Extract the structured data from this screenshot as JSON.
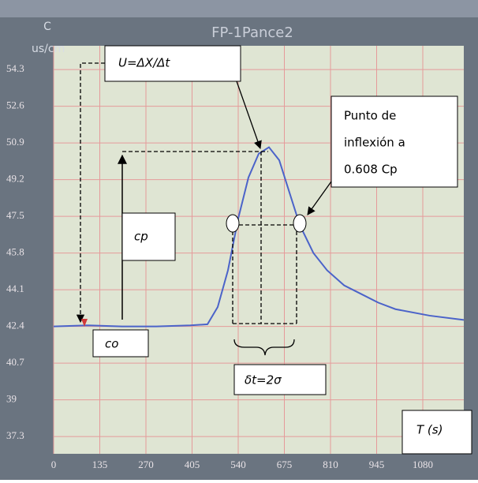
{
  "chart_data": {
    "type": "line",
    "title": "FP-1Pance2",
    "y_label": [
      "C",
      "us/cm"
    ],
    "x": [
      0,
      100,
      200,
      300,
      400,
      450,
      480,
      510,
      540,
      570,
      600,
      630,
      660,
      690,
      720,
      760,
      800,
      850,
      900,
      950,
      1000,
      1100,
      1200
    ],
    "series": [
      {
        "name": "C",
        "color": "#4b63c9",
        "values": [
          42.4,
          42.45,
          42.4,
          42.4,
          42.45,
          42.5,
          43.3,
          45.0,
          47.4,
          49.3,
          50.4,
          50.7,
          50.1,
          48.6,
          47.1,
          45.8,
          45.0,
          44.3,
          43.9,
          43.5,
          43.2,
          42.9,
          42.7
        ]
      }
    ],
    "xlim": [
      0,
      1200
    ],
    "ylim": [
      36.5,
      55.4
    ],
    "xticks": [
      0,
      135,
      270,
      405,
      540,
      675,
      810,
      945,
      1080
    ],
    "yticks": [
      37.3,
      39.0,
      40.7,
      42.4,
      44.1,
      45.8,
      47.5,
      49.2,
      50.9,
      52.6,
      54.3
    ],
    "grid": true,
    "annotations": {
      "velocity": "U=ΔX/Δt",
      "inflection": [
        "Punto de",
        "inflexión a",
        "0.608 Cp"
      ],
      "peak": "cp",
      "base": "co",
      "width": "δt=2σ",
      "time": "T (s)"
    }
  }
}
